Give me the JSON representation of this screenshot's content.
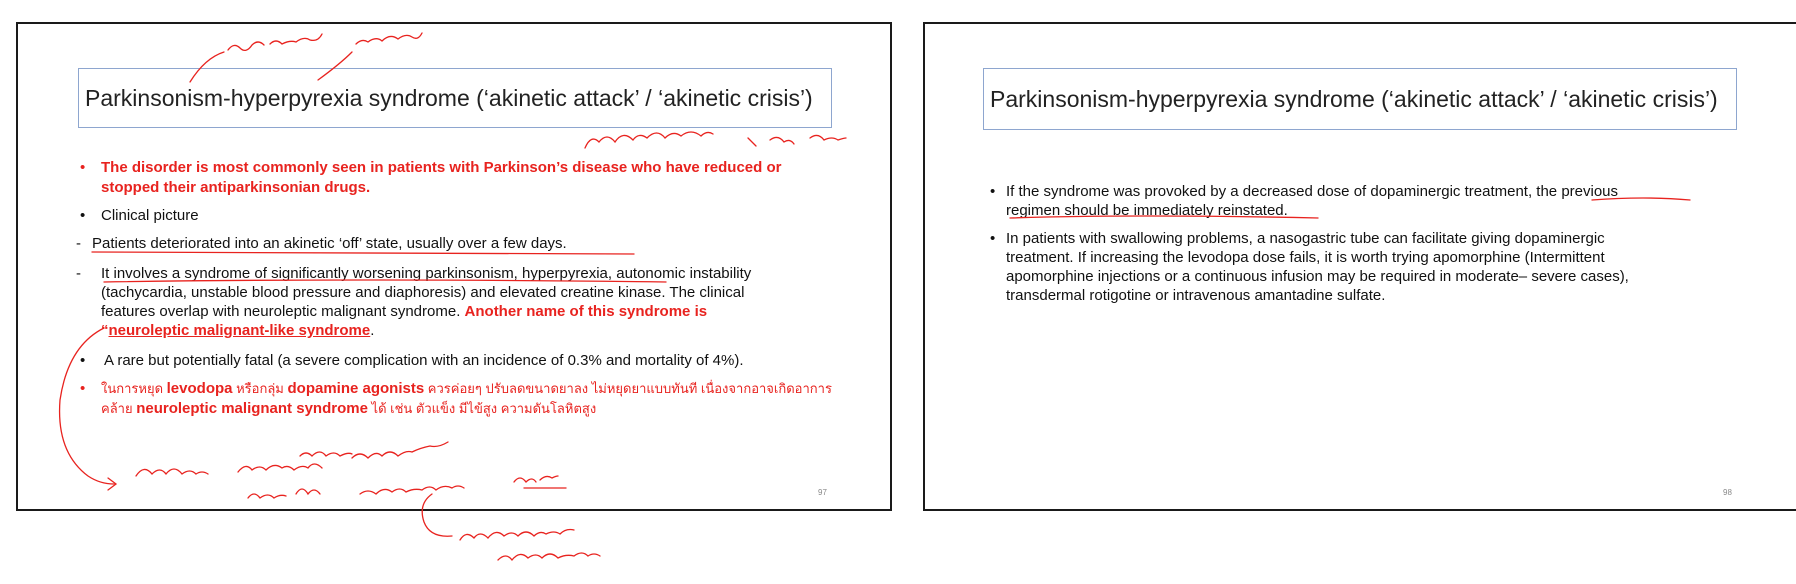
{
  "slide97": {
    "title": "Parkinsonism-hyperpyrexia syndrome (‘akinetic attack’ / ‘akinetic crisis’)",
    "p1_l1": "The disorder is most commonly seen in patients with Parkinson’s disease who have reduced or",
    "p1_l2": "stopped their antiparkinsonian drugs.",
    "p2": "Clinical picture",
    "p3": "Patients deteriorated into an akinetic ‘off’ state, usually over a few days.",
    "p4_l1a": "It involves a syndrome of significantly worsening parkinsonism, hyperpyrexia",
    "p4_l1b": ", autonomic instability",
    "p4_l2": "(tachycardia, unstable blood pressure and diaphoresis) and elevated creatine kinase. The clinical",
    "p4_l3a": "features overlap with neuroleptic malignant syndrome. ",
    "p4_l3b": "Another name of this syndrome is",
    "p4_l4a": "“",
    "p4_l4b": "neuroleptic malignant-like syndrome",
    "p4_l4c": ".",
    "p5": "A rare but potentially fatal (a severe complication with an incidence of 0.3% and mortality of 4%).",
    "p6_l1a": "ในการหยุด ",
    "p6_l1b": "levodopa",
    "p6_l1c": " หรือกลุ่ม ",
    "p6_l1d": "dopamine agonists",
    "p6_l1e": " ควรค่อยๆ ปรับลดขนาดยาลง ไม่หยุดยาแบบทันที เนื่องจากอาจเกิดอาการ",
    "p6_l2a": "คล้าย ",
    "p6_l2b": "neuroleptic malignant syndrome",
    "p6_l2c": " ได้ เช่น ตัวแข็ง มีไข้สูง ความดันโลหิตสูง",
    "page_number": "97",
    "bullet_char": "•",
    "dash_char": "-"
  },
  "slide98": {
    "title": "Parkinsonism-hyperpyrexia syndrome (‘akinetic attack’ / ‘akinetic crisis’)",
    "b1_l1a": "If the syndrome was provoked by a decreased dose of dopaminergic treatment, ",
    "b1_l1b": "the previous",
    "b1_l2a": "regimen should be immediately reinstated",
    "b1_l2b": ".",
    "b2_l1": "In patients with swallowing problems, a nasogastric tube can facilitate giving dopaminergic",
    "b2_l2": "treatment. If increasing the levodopa dose fails, it is worth trying apomorphine (Intermittent",
    "b2_l3": "apomorphine injections or a continuous infusion may be required in moderate– severe cases),",
    "b2_l4": "transdermal rotigotine or intravenous amantadine sulfate.",
    "page_number": "98",
    "bullet_char": "•"
  },
  "colors": {
    "accent_red": "#e8231f",
    "title_border": "#8ea6cf"
  }
}
